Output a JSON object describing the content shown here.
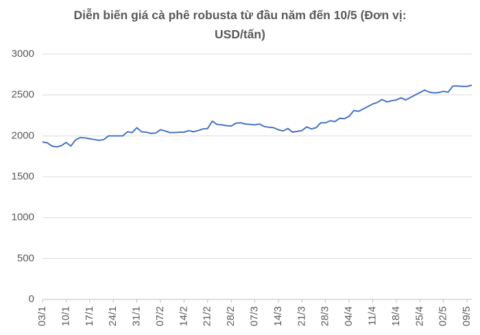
{
  "chart_data": {
    "type": "line",
    "title": "Diễn biến giá cà phê robusta từ đầu năm đến 10/5 (Đơn vị: USD/tấn)",
    "categories": [
      "03/1",
      null,
      null,
      null,
      null,
      "10/1",
      null,
      null,
      null,
      null,
      "17/1",
      null,
      null,
      null,
      null,
      "24/1",
      null,
      null,
      null,
      null,
      "31/1",
      null,
      null,
      null,
      null,
      "07/2",
      null,
      null,
      null,
      null,
      "14/2",
      null,
      null,
      null,
      null,
      "21/2",
      null,
      null,
      null,
      null,
      "28/2",
      null,
      null,
      null,
      null,
      "07/3",
      null,
      null,
      null,
      null,
      "14/3",
      null,
      null,
      null,
      null,
      "21/3",
      null,
      null,
      null,
      null,
      "28/3",
      null,
      null,
      null,
      null,
      "04/4",
      null,
      null,
      null,
      null,
      "11/4",
      null,
      null,
      null,
      null,
      "18/4",
      null,
      null,
      null,
      null,
      "25/4",
      null,
      null,
      null,
      null,
      "02/5",
      null,
      null,
      null,
      null,
      "09/5",
      null
    ],
    "values": [
      1925,
      1915,
      1875,
      1865,
      1880,
      1920,
      1875,
      1950,
      1980,
      1975,
      1965,
      1955,
      1945,
      1955,
      2000,
      2000,
      2000,
      2000,
      2050,
      2040,
      2100,
      2050,
      2045,
      2030,
      2035,
      2075,
      2060,
      2040,
      2040,
      2045,
      2045,
      2065,
      2050,
      2065,
      2085,
      2090,
      2180,
      2140,
      2135,
      2125,
      2120,
      2155,
      2160,
      2145,
      2140,
      2135,
      2145,
      2115,
      2105,
      2100,
      2075,
      2060,
      2090,
      2045,
      2055,
      2065,
      2110,
      2085,
      2100,
      2160,
      2160,
      2185,
      2175,
      2215,
      2210,
      2240,
      2310,
      2300,
      2330,
      2360,
      2390,
      2410,
      2445,
      2415,
      2430,
      2440,
      2465,
      2440,
      2470,
      2500,
      2530,
      2560,
      2535,
      2525,
      2530,
      2545,
      2535,
      2610,
      2610,
      2605,
      2605,
      2620
    ],
    "color": "#4472c4",
    "ylim": [
      0,
      3000
    ],
    "yticks": [
      0,
      500,
      1000,
      1500,
      2000,
      2500,
      3000
    ],
    "grid": true
  }
}
